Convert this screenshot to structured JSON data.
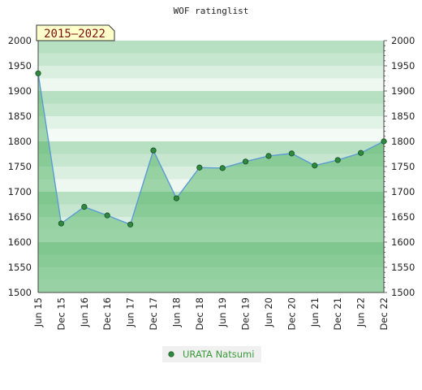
{
  "chart_data": {
    "type": "area",
    "title": "WOF ratinglist",
    "badge": "2015–2022",
    "categories": [
      "Jun 15",
      "Dec 15",
      "Jun 16",
      "Dec 16",
      "Jun 17",
      "Dec 17",
      "Jun 18",
      "Dec 18",
      "Jun 19",
      "Dec 19",
      "Jun 20",
      "Dec 20",
      "Jun 21",
      "Dec 21",
      "Jun 22",
      "Dec 22"
    ],
    "series": [
      {
        "name": "URATA Natsumi",
        "values": [
          1935,
          1637,
          1670,
          1653,
          1635,
          1782,
          1687,
          1748,
          1747,
          1760,
          1771,
          1776,
          1752,
          1763,
          1777,
          1800
        ]
      }
    ],
    "ylim": [
      1500,
      2000
    ],
    "yticks": [
      1500,
      1550,
      1600,
      1650,
      1700,
      1750,
      1800,
      1850,
      1900,
      1950,
      2000
    ],
    "grid": true,
    "legend_position": "bottom-center",
    "colors": {
      "line": "#5a9bd4",
      "area": "#6abf7b",
      "marker": "#2d8a3e",
      "band_dark": "#b5dfc0",
      "band_light": "#f2f9f4",
      "badge_bg": "#ffffcc"
    }
  }
}
